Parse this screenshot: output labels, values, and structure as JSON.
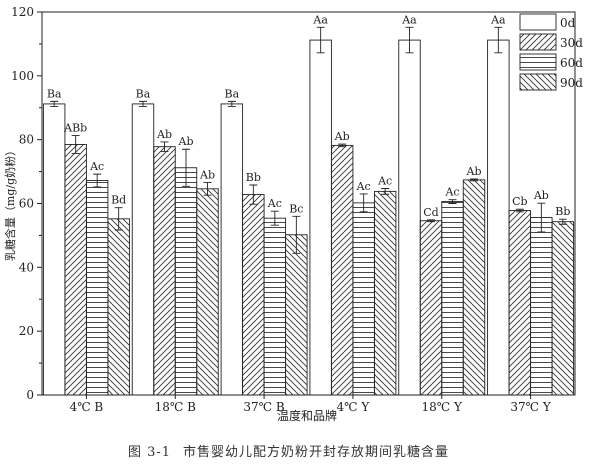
{
  "chart_data": {
    "type": "bar",
    "xlabel": "温度和品牌",
    "ylabel": "乳糖含量（mg/g奶粉）",
    "ylim": [
      0,
      120
    ],
    "yticks": [
      0,
      20,
      40,
      60,
      80,
      100,
      120
    ],
    "categories": [
      "4℃ B",
      "18℃ B",
      "37℃ B",
      "4℃ Y",
      "18℃ Y",
      "37℃ Y"
    ],
    "legend_position": "top-right",
    "series": [
      {
        "name": "0d",
        "pattern": "none",
        "values": [
          91.2,
          91.2,
          91.2,
          111.2,
          111.2,
          111.2
        ],
        "errors": [
          0.8,
          0.8,
          0.8,
          4.0,
          4.0,
          4.0
        ],
        "labels": [
          "Ba",
          "Ba",
          "Ba",
          "Aa",
          "Aa",
          "Aa"
        ]
      },
      {
        "name": "30d",
        "pattern": "diagonal-up",
        "values": [
          78.5,
          77.8,
          62.8,
          78.2,
          54.6,
          57.8
        ],
        "errors": [
          2.8,
          1.5,
          3.0,
          0.4,
          0.3,
          0.4
        ],
        "labels": [
          "ABb",
          "Ab",
          "Bb",
          "Ab",
          "Cd",
          "Cb"
        ]
      },
      {
        "name": "60d",
        "pattern": "horizontal",
        "values": [
          67.2,
          71.2,
          55.4,
          60.2,
          60.6,
          55.6
        ],
        "errors": [
          2.0,
          5.8,
          2.2,
          2.8,
          0.6,
          4.5
        ],
        "labels": [
          "Ac",
          "Ab",
          "Ac",
          "Ac",
          "Ac",
          "Ab"
        ]
      },
      {
        "name": "90d",
        "pattern": "diagonal-down",
        "values": [
          55.2,
          64.6,
          50.2,
          63.8,
          67.4,
          54.3
        ],
        "errors": [
          3.5,
          2.0,
          5.8,
          0.9,
          0.3,
          0.8
        ],
        "labels": [
          "Bd",
          "Ab",
          "Bc",
          "Ac",
          "Ab",
          "Bb"
        ]
      }
    ]
  },
  "caption": {
    "number": "图 3-1",
    "text": "市售婴幼儿配方奶粉开封存放期间乳糖含量"
  }
}
